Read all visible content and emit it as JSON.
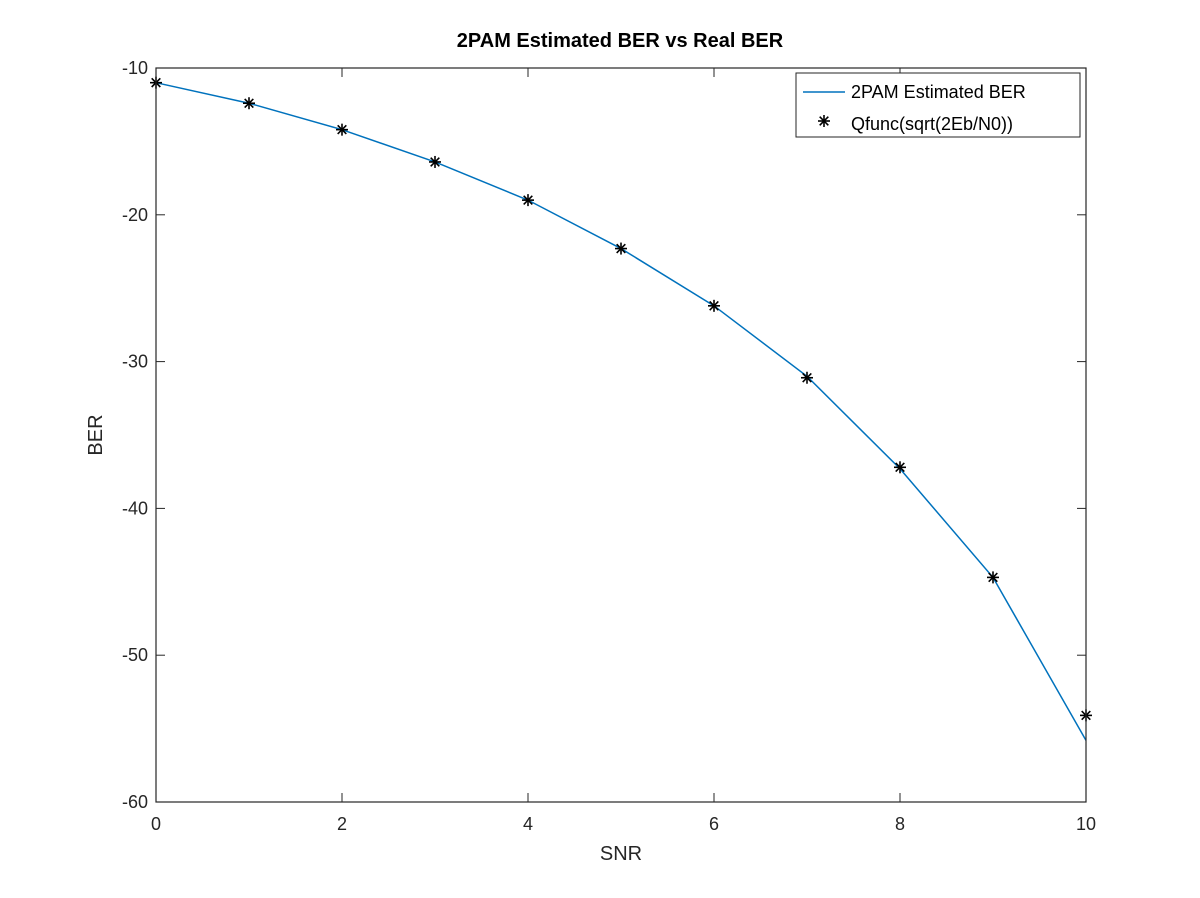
{
  "chart_data": {
    "type": "line",
    "title": "2PAM Estimated BER vs Real BER",
    "xlabel": "SNR",
    "ylabel": "BER",
    "xlim": [
      0,
      10
    ],
    "ylim": [
      -60,
      -10
    ],
    "xticks": [
      0,
      2,
      4,
      6,
      8,
      10
    ],
    "yticks": [
      -60,
      -50,
      -40,
      -30,
      -20,
      -10
    ],
    "grid": false,
    "legend_position": "top-right",
    "series": [
      {
        "name": "2PAM Estimated BER",
        "style": "line",
        "color": "#0072BD",
        "x": [
          0,
          1,
          2,
          3,
          4,
          5,
          6,
          7,
          8,
          9,
          10
        ],
        "y": [
          -11.0,
          -12.4,
          -14.2,
          -16.4,
          -19.0,
          -22.3,
          -26.2,
          -31.0,
          -37.3,
          -44.7,
          -55.8
        ]
      },
      {
        "name": "Qfunc(sqrt(2Eb/N0))",
        "style": "marker",
        "marker": "*",
        "color": "#000000",
        "x": [
          0,
          1,
          2,
          3,
          4,
          5,
          6,
          7,
          8,
          9,
          10
        ],
        "y": [
          -11.0,
          -12.4,
          -14.2,
          -16.4,
          -19.0,
          -22.3,
          -26.2,
          -31.1,
          -37.2,
          -44.7,
          -54.1
        ]
      }
    ]
  }
}
